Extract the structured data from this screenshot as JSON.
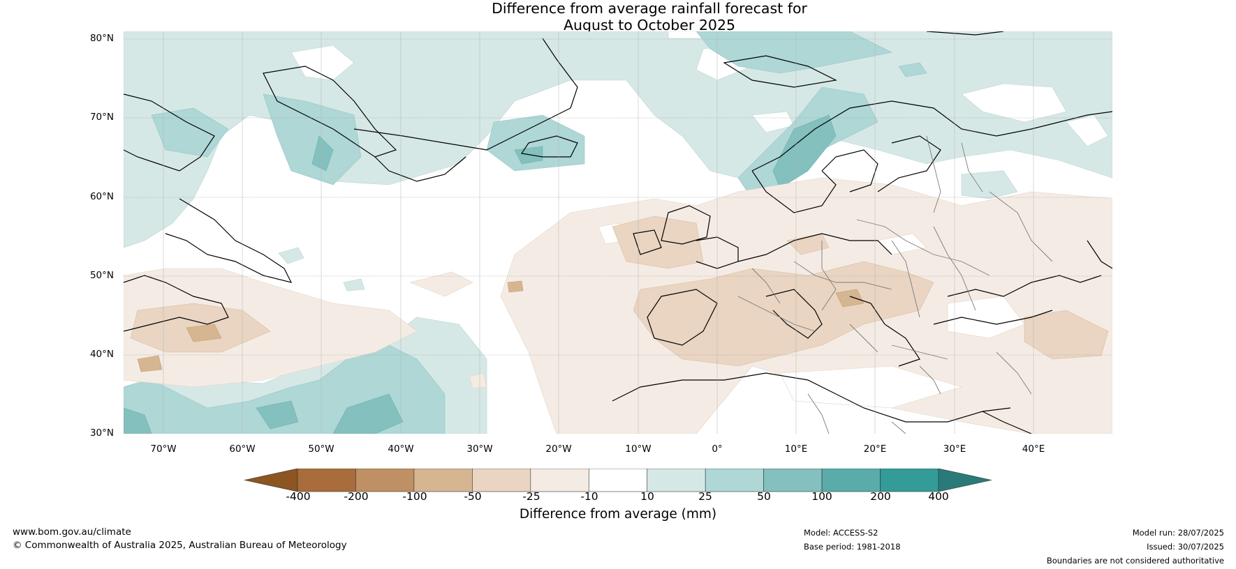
{
  "title_line1": "Difference from average rainfall forecast for",
  "title_line2": "August to October 2025",
  "lat_labels": [
    "80°N",
    "70°N",
    "60°N",
    "50°N",
    "40°N",
    "30°N"
  ],
  "lon_labels": [
    "70°W",
    "60°W",
    "50°W",
    "40°W",
    "30°W",
    "20°W",
    "10°W",
    "0°",
    "10°E",
    "20°E",
    "30°E",
    "40°E"
  ],
  "colorbar": {
    "ticks": [
      "-400",
      "-200",
      "-100",
      "-50",
      "-25",
      "-10",
      "10",
      "25",
      "50",
      "100",
      "200",
      "400"
    ],
    "label": "Difference from average (mm)",
    "colors": [
      "#8c5521",
      "#a86d3a",
      "#bf9063",
      "#d6b591",
      "#e9d5c2",
      "#f4ece4",
      "#ffffff",
      "#d6e8e6",
      "#aed7d6",
      "#83c0be",
      "#5aacaa",
      "#339b98",
      "#2a7b78"
    ]
  },
  "footer": {
    "website": "www.bom.gov.au/climate",
    "copyright": "© Commonwealth of Australia 2025, Australian Bureau of Meteorology",
    "model": "Model: ACCESS-S2",
    "base_period": "Base period: 1981-2018",
    "model_run": "Model run: 28/07/2025",
    "issued": "Issued: 30/07/2025",
    "disclaimer": "Boundaries are not considered authoritative"
  }
}
